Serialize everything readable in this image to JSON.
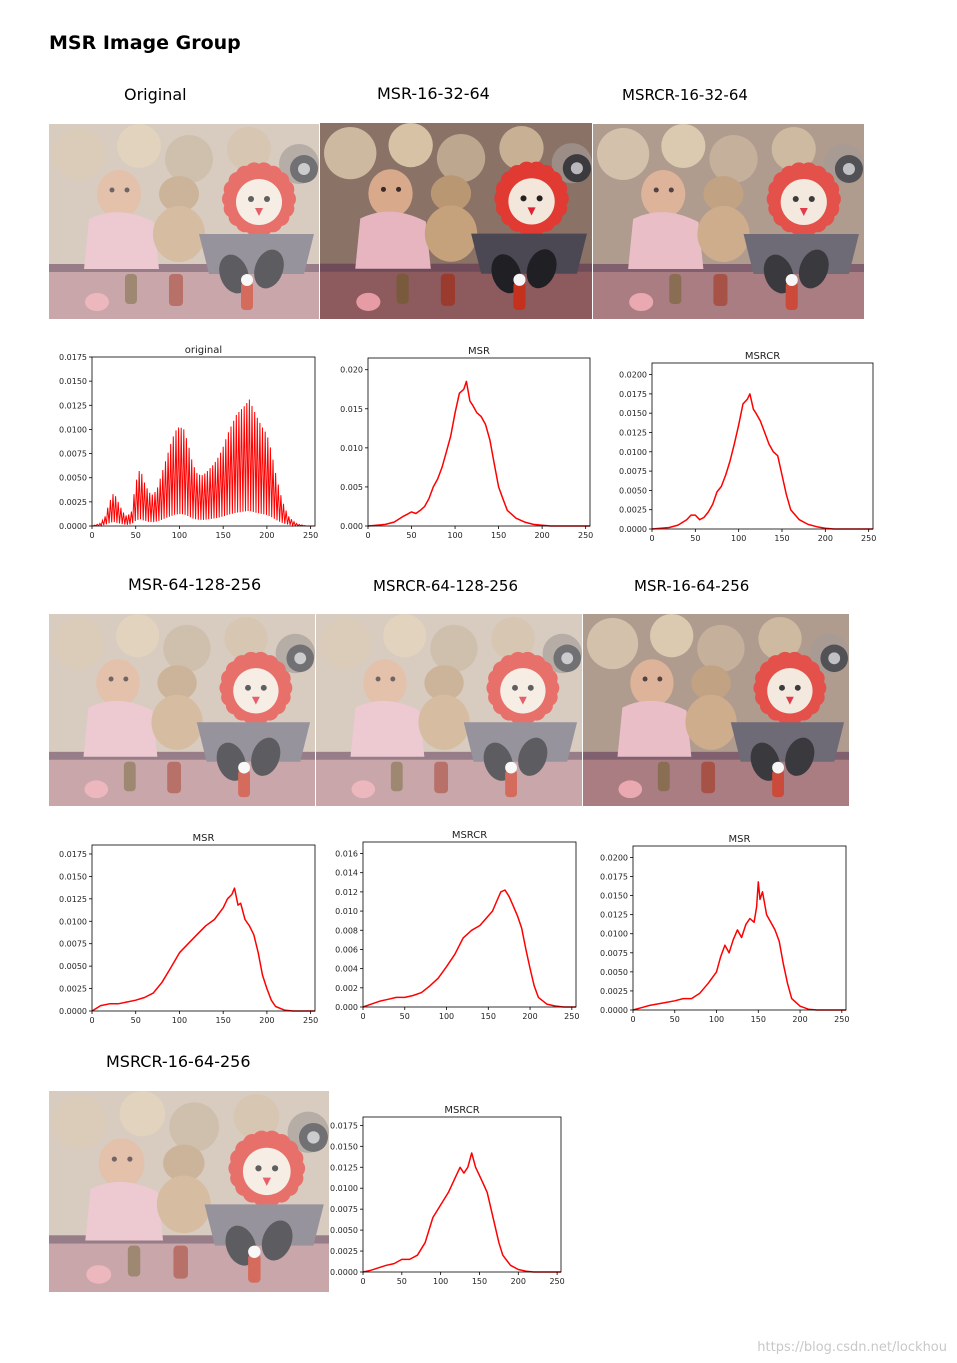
{
  "page": {
    "title": "MSR Image Group",
    "watermark": "https://blog.csdn.net/lockhou"
  },
  "captions": [
    "Original",
    "MSR-16-32-64",
    "MSRCR-16-32-64",
    "MSR-64-128-256",
    "MSRCR-64-128-256",
    "MSR-16-64-256",
    "MSRCR-16-64-256"
  ],
  "photo_alt": "toys scene",
  "colors": {
    "series": "#ff0000",
    "axis": "#000000"
  },
  "chart_data": [
    {
      "type": "line",
      "title": "original",
      "histogram_style": "spiky",
      "xlim": [
        0,
        255
      ],
      "ylim": [
        0,
        0.0175
      ],
      "xticks": [
        "0",
        "50",
        "100",
        "150",
        "200",
        "250"
      ],
      "yticks": [
        "0.0000",
        "0.0025",
        "0.0050",
        "0.0075",
        "0.0100",
        "0.0125",
        "0.0150",
        "0.0175"
      ],
      "x": [
        0,
        10,
        15,
        20,
        25,
        30,
        35,
        40,
        45,
        50,
        55,
        60,
        65,
        70,
        75,
        80,
        85,
        90,
        95,
        100,
        105,
        110,
        115,
        120,
        125,
        130,
        135,
        140,
        145,
        150,
        155,
        160,
        165,
        170,
        175,
        180,
        185,
        190,
        195,
        200,
        205,
        210,
        215,
        220,
        225,
        230,
        235,
        240,
        245,
        250,
        255
      ],
      "y": [
        0,
        0.0003,
        0.001,
        0.0025,
        0.0035,
        0.0025,
        0.0015,
        0.001,
        0.0015,
        0.0045,
        0.006,
        0.0045,
        0.0035,
        0.0032,
        0.004,
        0.0055,
        0.007,
        0.0085,
        0.0098,
        0.0103,
        0.01,
        0.0085,
        0.0065,
        0.0055,
        0.0052,
        0.0055,
        0.006,
        0.0065,
        0.0072,
        0.0082,
        0.0095,
        0.0105,
        0.0115,
        0.012,
        0.0125,
        0.0131,
        0.012,
        0.011,
        0.0102,
        0.0095,
        0.0078,
        0.0055,
        0.0035,
        0.002,
        0.001,
        0.0005,
        0.0002,
        0.0001,
        0,
        0,
        0
      ]
    },
    {
      "type": "line",
      "title": "MSR",
      "xlim": [
        0,
        255
      ],
      "ylim": [
        0,
        0.0215
      ],
      "xticks": [
        "0",
        "50",
        "100",
        "150",
        "200",
        "250"
      ],
      "yticks": [
        "0.000",
        "0.005",
        "0.010",
        "0.015",
        "0.020"
      ],
      "x": [
        0,
        20,
        30,
        40,
        45,
        50,
        55,
        60,
        65,
        70,
        75,
        80,
        85,
        90,
        95,
        100,
        105,
        110,
        113,
        117,
        120,
        125,
        130,
        135,
        140,
        145,
        150,
        155,
        160,
        170,
        180,
        190,
        200,
        210,
        220,
        230,
        240,
        255
      ],
      "y": [
        0,
        0.0002,
        0.0005,
        0.0012,
        0.0015,
        0.0018,
        0.0016,
        0.002,
        0.0025,
        0.0035,
        0.005,
        0.006,
        0.0075,
        0.0095,
        0.0115,
        0.0145,
        0.017,
        0.0175,
        0.0185,
        0.016,
        0.0155,
        0.0145,
        0.014,
        0.013,
        0.011,
        0.008,
        0.005,
        0.0035,
        0.002,
        0.001,
        0.0005,
        0.0002,
        0.0001,
        0,
        0,
        0,
        0,
        0
      ]
    },
    {
      "type": "line",
      "title": "MSRCR",
      "xlim": [
        0,
        255
      ],
      "ylim": [
        0,
        0.0215
      ],
      "xticks": [
        "0",
        "50",
        "100",
        "150",
        "200",
        "250"
      ],
      "yticks": [
        "0.0000",
        "0.0025",
        "0.0050",
        "0.0075",
        "0.0100",
        "0.0125",
        "0.0150",
        "0.0175",
        "0.0200"
      ],
      "x": [
        0,
        20,
        30,
        40,
        45,
        50,
        55,
        60,
        65,
        70,
        75,
        80,
        85,
        90,
        95,
        100,
        105,
        110,
        113,
        117,
        120,
        125,
        130,
        135,
        140,
        145,
        150,
        155,
        160,
        170,
        180,
        190,
        200,
        210,
        220,
        230,
        240,
        255
      ],
      "y": [
        0,
        0.0002,
        0.0005,
        0.0012,
        0.0018,
        0.0018,
        0.0012,
        0.0015,
        0.0022,
        0.0032,
        0.0048,
        0.0055,
        0.007,
        0.0088,
        0.011,
        0.0135,
        0.0162,
        0.0168,
        0.0175,
        0.0155,
        0.015,
        0.014,
        0.0125,
        0.011,
        0.01,
        0.0095,
        0.007,
        0.0045,
        0.0025,
        0.0012,
        0.0006,
        0.0003,
        0.0001,
        0,
        0,
        0,
        0,
        0
      ]
    },
    {
      "type": "line",
      "title": "MSR",
      "xlim": [
        0,
        255
      ],
      "ylim": [
        0,
        0.0185
      ],
      "xticks": [
        "0",
        "50",
        "100",
        "150",
        "200",
        "250"
      ],
      "yticks": [
        "0.0000",
        "0.0025",
        "0.0050",
        "0.0075",
        "0.0100",
        "0.0125",
        "0.0150",
        "0.0175"
      ],
      "x": [
        0,
        10,
        20,
        30,
        40,
        50,
        60,
        70,
        80,
        90,
        100,
        110,
        120,
        130,
        140,
        150,
        155,
        160,
        163,
        167,
        170,
        175,
        180,
        185,
        190,
        195,
        200,
        205,
        210,
        220,
        230,
        240,
        255
      ],
      "y": [
        0,
        0.0006,
        0.0008,
        0.0008,
        0.001,
        0.0012,
        0.0015,
        0.002,
        0.0032,
        0.0048,
        0.0065,
        0.0075,
        0.0085,
        0.0095,
        0.0102,
        0.0115,
        0.0125,
        0.013,
        0.0137,
        0.0118,
        0.012,
        0.0102,
        0.0095,
        0.0085,
        0.0065,
        0.004,
        0.0025,
        0.0012,
        0.0005,
        0.0001,
        0,
        0,
        0
      ]
    },
    {
      "type": "line",
      "title": "MSRCR",
      "xlim": [
        0,
        255
      ],
      "ylim": [
        0,
        0.0172
      ],
      "xticks": [
        "0",
        "50",
        "100",
        "150",
        "200",
        "250"
      ],
      "yticks": [
        "0.000",
        "0.002",
        "0.004",
        "0.006",
        "0.008",
        "0.010",
        "0.012",
        "0.014",
        "0.016"
      ],
      "x": [
        0,
        10,
        20,
        30,
        40,
        50,
        60,
        70,
        80,
        90,
        100,
        110,
        120,
        130,
        140,
        150,
        155,
        160,
        165,
        170,
        175,
        180,
        185,
        190,
        195,
        200,
        205,
        210,
        220,
        230,
        240,
        255
      ],
      "y": [
        0,
        0.0003,
        0.0006,
        0.0008,
        0.001,
        0.001,
        0.0012,
        0.0015,
        0.0022,
        0.003,
        0.0042,
        0.0055,
        0.0072,
        0.008,
        0.0085,
        0.0095,
        0.01,
        0.011,
        0.012,
        0.0122,
        0.0115,
        0.0105,
        0.0095,
        0.0082,
        0.006,
        0.004,
        0.0022,
        0.001,
        0.0003,
        0.0001,
        0,
        0
      ]
    },
    {
      "type": "line",
      "title": "MSR",
      "xlim": [
        0,
        255
      ],
      "ylim": [
        0,
        0.0215
      ],
      "xticks": [
        "0",
        "50",
        "100",
        "150",
        "200",
        "250"
      ],
      "yticks": [
        "0.0000",
        "0.0025",
        "0.0050",
        "0.0075",
        "0.0100",
        "0.0125",
        "0.0150",
        "0.0175",
        "0.0200"
      ],
      "x": [
        0,
        10,
        20,
        30,
        40,
        50,
        60,
        70,
        80,
        90,
        100,
        105,
        110,
        115,
        120,
        125,
        130,
        135,
        140,
        145,
        148,
        150,
        152,
        155,
        160,
        165,
        170,
        175,
        180,
        185,
        190,
        200,
        210,
        220,
        230,
        240,
        255
      ],
      "y": [
        0,
        0.0003,
        0.0006,
        0.0008,
        0.001,
        0.0012,
        0.0015,
        0.0015,
        0.0022,
        0.0035,
        0.005,
        0.007,
        0.0085,
        0.0075,
        0.0092,
        0.0105,
        0.0095,
        0.0112,
        0.012,
        0.0115,
        0.0135,
        0.0168,
        0.0145,
        0.0155,
        0.0125,
        0.0115,
        0.0105,
        0.009,
        0.006,
        0.0035,
        0.0015,
        0.0005,
        0.0001,
        0,
        0,
        0,
        0
      ]
    },
    {
      "type": "line",
      "title": "MSRCR",
      "xlim": [
        0,
        255
      ],
      "ylim": [
        0,
        0.0185
      ],
      "xticks": [
        "0",
        "50",
        "100",
        "150",
        "200",
        "250"
      ],
      "yticks": [
        "0.0000",
        "0.0025",
        "0.0050",
        "0.0075",
        "0.0100",
        "0.0125",
        "0.0150",
        "0.0175"
      ],
      "x": [
        0,
        10,
        20,
        30,
        40,
        50,
        60,
        70,
        80,
        90,
        100,
        110,
        120,
        125,
        130,
        135,
        140,
        145,
        150,
        155,
        160,
        165,
        170,
        175,
        180,
        190,
        200,
        210,
        220,
        230,
        240,
        255
      ],
      "y": [
        0,
        0.0002,
        0.0005,
        0.0008,
        0.001,
        0.0015,
        0.0015,
        0.002,
        0.0035,
        0.0065,
        0.008,
        0.0095,
        0.0115,
        0.0125,
        0.0118,
        0.0125,
        0.0142,
        0.0125,
        0.0115,
        0.0105,
        0.0095,
        0.0075,
        0.0055,
        0.0035,
        0.002,
        0.0008,
        0.0003,
        0.0001,
        0,
        0,
        0,
        0
      ]
    }
  ]
}
